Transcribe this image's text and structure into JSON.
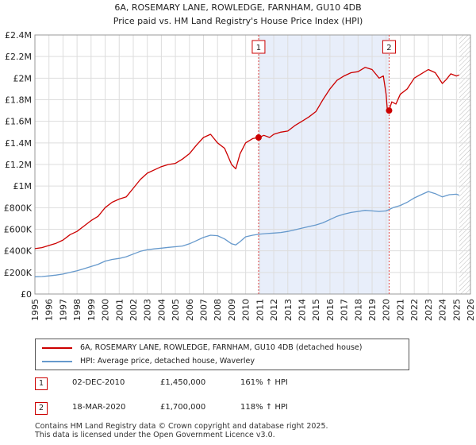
{
  "chart_data": {
    "type": "line",
    "title": "6A, ROSEMARY LANE, ROWLEDGE, FARNHAM, GU10 4DB",
    "subtitle": "Price paid vs. HM Land Registry's House Price Index (HPI)",
    "xlabel": "",
    "ylabel": "",
    "xlim": [
      1995,
      2026
    ],
    "ylim": [
      0,
      2400000
    ],
    "x_ticks": [
      "1995",
      "1996",
      "1997",
      "1998",
      "1999",
      "2000",
      "2001",
      "2002",
      "2003",
      "2004",
      "2005",
      "2006",
      "2007",
      "2008",
      "2009",
      "2010",
      "2011",
      "2012",
      "2013",
      "2014",
      "2015",
      "2016",
      "2017",
      "2018",
      "2019",
      "2020",
      "2021",
      "2022",
      "2023",
      "2024",
      "2025",
      "2026"
    ],
    "y_ticks": [
      {
        "value": 0,
        "label": "£0"
      },
      {
        "value": 200000,
        "label": "£200K"
      },
      {
        "value": 400000,
        "label": "£400K"
      },
      {
        "value": 600000,
        "label": "£600K"
      },
      {
        "value": 800000,
        "label": "£800K"
      },
      {
        "value": 1000000,
        "label": "£1M"
      },
      {
        "value": 1200000,
        "label": "£1.2M"
      },
      {
        "value": 1400000,
        "label": "£1.4M"
      },
      {
        "value": 1600000,
        "label": "£1.6M"
      },
      {
        "value": 1800000,
        "label": "£1.8M"
      },
      {
        "value": 2000000,
        "label": "£2M"
      },
      {
        "value": 2200000,
        "label": "£2.2M"
      },
      {
        "value": 2400000,
        "label": "£2.4M"
      }
    ],
    "grid": true,
    "shaded_period": {
      "from": 2010.92,
      "to": 2020.21
    },
    "forecast_start": 2025.2,
    "series": [
      {
        "name": "6A, ROSEMARY LANE, ROWLEDGE, FARNHAM, GU10 4DB (detached house)",
        "color": "#cc0000",
        "x": [
          1995,
          1995.5,
          1996,
          1996.5,
          1997,
          1997.5,
          1998,
          1998.5,
          1999,
          1999.5,
          2000,
          2000.5,
          2001,
          2001.5,
          2002,
          2002.5,
          2003,
          2003.5,
          2004,
          2004.5,
          2005,
          2005.5,
          2006,
          2006.5,
          2007,
          2007.5,
          2008,
          2008.5,
          2009,
          2009.3,
          2009.6,
          2010,
          2010.5,
          2010.92,
          2011.3,
          2011.7,
          2012,
          2012.5,
          2013,
          2013.5,
          2014,
          2014.5,
          2015,
          2015.5,
          2016,
          2016.5,
          2017,
          2017.5,
          2018,
          2018.5,
          2019,
          2019.5,
          2019.8,
          2020.0,
          2020.1,
          2020.21,
          2020.4,
          2020.7,
          2021,
          2021.5,
          2022,
          2022.5,
          2023,
          2023.5,
          2024,
          2024.3,
          2024.6,
          2025,
          2025.2
        ],
        "y": [
          420000,
          430000,
          450000,
          470000,
          500000,
          550000,
          580000,
          630000,
          680000,
          720000,
          800000,
          850000,
          880000,
          900000,
          980000,
          1060000,
          1120000,
          1150000,
          1180000,
          1200000,
          1210000,
          1250000,
          1300000,
          1380000,
          1450000,
          1480000,
          1400000,
          1350000,
          1200000,
          1160000,
          1300000,
          1400000,
          1440000,
          1450000,
          1470000,
          1450000,
          1480000,
          1500000,
          1510000,
          1560000,
          1600000,
          1640000,
          1690000,
          1800000,
          1900000,
          1980000,
          2020000,
          2050000,
          2060000,
          2100000,
          2080000,
          2000000,
          2020000,
          1850000,
          1680000,
          1700000,
          1780000,
          1760000,
          1850000,
          1900000,
          2000000,
          2040000,
          2080000,
          2050000,
          1950000,
          1990000,
          2040000,
          2020000,
          2030000
        ]
      },
      {
        "name": "HPI: Average price, detached house, Waverley",
        "color": "#6699cc",
        "x": [
          1995,
          1995.5,
          1996,
          1996.5,
          1997,
          1997.5,
          1998,
          1998.5,
          1999,
          1999.5,
          2000,
          2000.5,
          2001,
          2001.5,
          2002,
          2002.5,
          2003,
          2003.5,
          2004,
          2004.5,
          2005,
          2005.5,
          2006,
          2006.5,
          2007,
          2007.5,
          2008,
          2008.5,
          2009,
          2009.3,
          2009.6,
          2010,
          2010.5,
          2011,
          2011.5,
          2012,
          2012.5,
          2013,
          2013.5,
          2014,
          2014.5,
          2015,
          2015.5,
          2016,
          2016.5,
          2017,
          2017.5,
          2018,
          2018.5,
          2019,
          2019.5,
          2020,
          2020.5,
          2021,
          2021.5,
          2022,
          2022.5,
          2023,
          2023.5,
          2024,
          2024.5,
          2025,
          2025.2
        ],
        "y": [
          160000,
          162000,
          168000,
          175000,
          185000,
          200000,
          215000,
          235000,
          255000,
          275000,
          305000,
          320000,
          330000,
          345000,
          370000,
          395000,
          410000,
          418000,
          425000,
          432000,
          438000,
          445000,
          465000,
          495000,
          525000,
          545000,
          540000,
          510000,
          465000,
          455000,
          485000,
          530000,
          545000,
          555000,
          560000,
          565000,
          570000,
          580000,
          595000,
          610000,
          625000,
          640000,
          660000,
          690000,
          720000,
          740000,
          755000,
          765000,
          775000,
          770000,
          765000,
          770000,
          800000,
          820000,
          850000,
          890000,
          920000,
          950000,
          930000,
          900000,
          920000,
          925000,
          915000
        ]
      }
    ],
    "annotations": [
      {
        "id": "1",
        "x": 2010.92,
        "y": 1450000
      },
      {
        "id": "2",
        "x": 2020.21,
        "y": 1700000
      }
    ]
  },
  "legend": {
    "items": [
      {
        "label": "6A, ROSEMARY LANE, ROWLEDGE, FARNHAM, GU10 4DB (detached house)",
        "color": "#cc0000"
      },
      {
        "label": "HPI: Average price, detached house, Waverley",
        "color": "#6699cc"
      }
    ]
  },
  "transactions": [
    {
      "num": "1",
      "date": "02-DEC-2010",
      "price": "£1,450,000",
      "hpi": "161% ↑ HPI"
    },
    {
      "num": "2",
      "date": "18-MAR-2020",
      "price": "£1,700,000",
      "hpi": "118% ↑ HPI"
    }
  ],
  "footer": {
    "line1": "Contains HM Land Registry data © Crown copyright and database right 2025.",
    "line2": "This data is licensed under the Open Government Licence v3.0."
  }
}
